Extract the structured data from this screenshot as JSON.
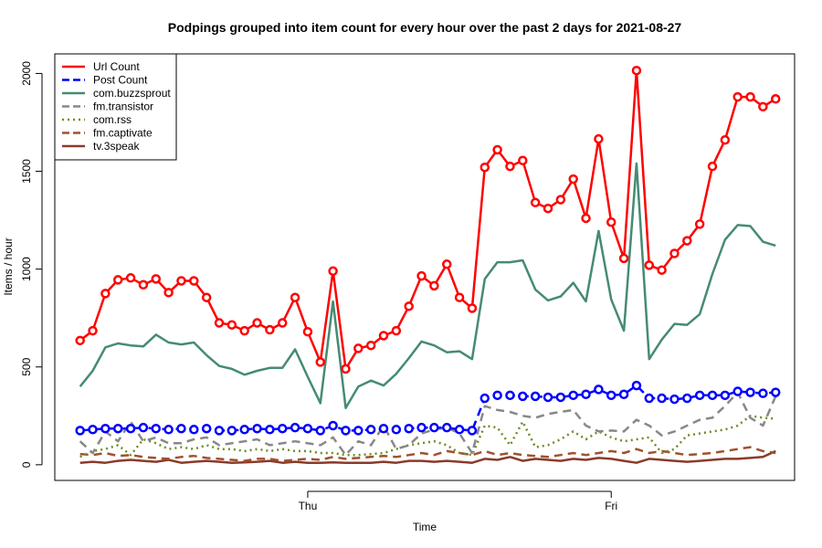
{
  "chart_data": {
    "type": "line",
    "title": "Podpings grouped into item count for every  hour  over the past 2 days for 2021-08-27",
    "xlabel": "Time",
    "ylabel": "Items / hour",
    "ylim": [
      -80,
      2100
    ],
    "yticks": [
      0,
      500,
      1000,
      1500,
      2000
    ],
    "xlim": [
      -2.0,
      56.5
    ],
    "xticks": [
      {
        "label": "Thu",
        "x": 18
      },
      {
        "label": "Fri",
        "x": 42
      }
    ],
    "legend_position": "top-left",
    "grid": false,
    "series": [
      {
        "name": "Url Count",
        "color": "#ff0000",
        "dash": "solid",
        "markers": true,
        "values": [
          635,
          685,
          875,
          945,
          955,
          920,
          950,
          880,
          940,
          940,
          855,
          725,
          715,
          685,
          725,
          690,
          725,
          855,
          680,
          525,
          990,
          490,
          595,
          610,
          660,
          685,
          810,
          965,
          915,
          1025,
          855,
          800,
          1520,
          1610,
          1525,
          1555,
          1340,
          1310,
          1355,
          1460,
          1260,
          1665,
          1240,
          1055,
          2015,
          1020,
          995,
          1080,
          1145,
          1230,
          1525,
          1660,
          1880,
          1880,
          1830,
          1870
        ]
      },
      {
        "name": "Post Count",
        "color": "#0000ff",
        "dash": "dashed",
        "markers": true,
        "values": [
          175,
          180,
          185,
          185,
          185,
          190,
          185,
          180,
          185,
          180,
          185,
          175,
          175,
          180,
          185,
          180,
          185,
          190,
          185,
          175,
          200,
          175,
          175,
          180,
          185,
          180,
          185,
          190,
          190,
          190,
          180,
          175,
          340,
          355,
          355,
          350,
          350,
          345,
          345,
          355,
          360,
          385,
          355,
          360,
          405,
          340,
          340,
          335,
          340,
          355,
          355,
          355,
          375,
          370,
          365,
          370
        ]
      },
      {
        "name": "com.buzzsprout",
        "color": "#458b74",
        "dash": "solid",
        "markers": false,
        "values": [
          400,
          480,
          600,
          620,
          610,
          605,
          665,
          625,
          615,
          625,
          560,
          505,
          490,
          460,
          480,
          495,
          495,
          590,
          450,
          315,
          835,
          290,
          400,
          430,
          405,
          465,
          545,
          630,
          610,
          575,
          580,
          540,
          950,
          1035,
          1035,
          1045,
          895,
          840,
          860,
          930,
          835,
          1195,
          845,
          685,
          1540,
          540,
          640,
          720,
          715,
          770,
          975,
          1150,
          1225,
          1220,
          1140,
          1120
        ]
      },
      {
        "name": "fm.transistor",
        "color": "#888888",
        "dash": "dashed",
        "markers": false,
        "values": [
          120,
          60,
          170,
          120,
          220,
          120,
          140,
          110,
          110,
          130,
          140,
          100,
          110,
          120,
          130,
          100,
          110,
          120,
          110,
          100,
          140,
          50,
          120,
          100,
          200,
          80,
          100,
          160,
          180,
          190,
          160,
          60,
          300,
          280,
          270,
          250,
          240,
          260,
          270,
          280,
          200,
          170,
          175,
          170,
          230,
          200,
          150,
          170,
          200,
          230,
          240,
          300,
          370,
          240,
          200,
          350
        ]
      },
      {
        "name": "com.rss",
        "color": "#6b8e23",
        "dash": "dotted",
        "markers": false,
        "values": [
          40,
          70,
          80,
          100,
          50,
          130,
          110,
          80,
          90,
          80,
          100,
          80,
          80,
          70,
          80,
          70,
          80,
          70,
          70,
          60,
          60,
          50,
          50,
          55,
          60,
          80,
          100,
          110,
          120,
          100,
          60,
          50,
          200,
          190,
          100,
          220,
          90,
          100,
          130,
          170,
          130,
          170,
          140,
          120,
          130,
          140,
          60,
          80,
          150,
          160,
          170,
          180,
          200,
          250,
          240,
          235
        ]
      },
      {
        "name": "fm.captivate",
        "color": "#a0522d",
        "dash": "dashed",
        "markers": false,
        "values": [
          55,
          50,
          60,
          45,
          50,
          40,
          35,
          30,
          40,
          45,
          35,
          30,
          25,
          20,
          30,
          30,
          20,
          25,
          30,
          25,
          40,
          30,
          35,
          40,
          45,
          40,
          50,
          60,
          50,
          70,
          60,
          50,
          70,
          50,
          60,
          50,
          45,
          40,
          50,
          60,
          50,
          60,
          70,
          60,
          80,
          60,
          70,
          60,
          50,
          55,
          60,
          70,
          80,
          90,
          70,
          60
        ]
      },
      {
        "name": "tv.3speak",
        "color": "#8b3a2a",
        "dash": "solid",
        "markers": false,
        "values": [
          10,
          15,
          10,
          20,
          25,
          20,
          15,
          25,
          10,
          15,
          20,
          15,
          10,
          12,
          15,
          20,
          10,
          15,
          10,
          10,
          12,
          10,
          10,
          10,
          15,
          10,
          20,
          20,
          15,
          20,
          15,
          10,
          30,
          25,
          40,
          20,
          30,
          25,
          20,
          30,
          25,
          35,
          30,
          20,
          10,
          30,
          25,
          20,
          15,
          20,
          25,
          30,
          30,
          35,
          40,
          70
        ]
      }
    ]
  }
}
